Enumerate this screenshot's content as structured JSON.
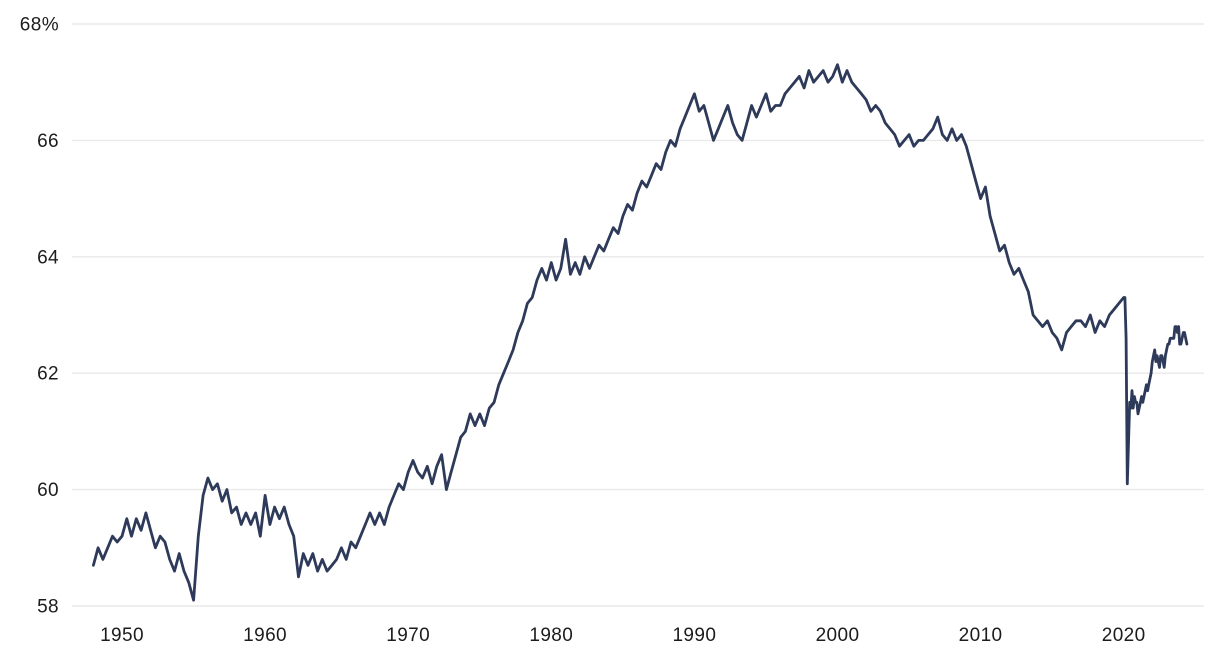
{
  "page": {
    "background_color": "#ffffff"
  },
  "chart_data": {
    "type": "line",
    "title": "",
    "grid": "horizontal-only",
    "grid_color": "#e9e9e9",
    "label_color": "#1c1c1c",
    "line_color": "#2e3a59",
    "legend": "none",
    "y_axis": {
      "range": [
        58,
        68
      ],
      "unit": "%",
      "ticks": [
        {
          "value": 68,
          "label": "68%"
        },
        {
          "value": 66,
          "label": "66"
        },
        {
          "value": 64,
          "label": "64"
        },
        {
          "value": 62,
          "label": "62"
        },
        {
          "value": 60,
          "label": "60"
        },
        {
          "value": 58,
          "label": "58"
        }
      ]
    },
    "x_axis": {
      "range": [
        1948,
        2024.42
      ],
      "ticks": [
        {
          "value": 1950,
          "label": "1950"
        },
        {
          "value": 1960,
          "label": "1960"
        },
        {
          "value": 1970,
          "label": "1970"
        },
        {
          "value": 1980,
          "label": "1980"
        },
        {
          "value": 1990,
          "label": "1990"
        },
        {
          "value": 2000,
          "label": "2000"
        },
        {
          "value": 2010,
          "label": "2010"
        },
        {
          "value": 2020,
          "label": "2020"
        }
      ]
    },
    "series": [
      {
        "id": "main-series",
        "color": "#2e3a59",
        "segments": [
          {
            "start_year": 1948,
            "points_per_year": 3,
            "values": [
              58.7,
              59.0,
              58.8,
              59.0,
              59.2,
              59.1,
              59.2,
              59.5,
              59.2,
              59.5,
              59.3,
              59.6,
              59.3,
              59.0,
              59.2,
              59.1,
              58.8,
              58.6,
              58.9,
              58.6,
              58.4,
              58.1,
              59.2,
              59.9,
              60.2,
              60.0,
              60.1,
              59.8,
              60.0,
              59.6,
              59.7,
              59.4,
              59.6,
              59.4,
              59.6,
              59.2,
              59.9,
              59.4,
              59.7,
              59.5,
              59.7,
              59.4,
              59.2,
              58.5,
              58.9,
              58.7,
              58.9,
              58.6,
              58.8,
              58.6,
              58.7,
              58.8,
              59.0,
              58.8,
              59.1,
              59.0,
              59.2,
              59.4,
              59.6,
              59.4,
              59.6,
              59.4,
              59.7,
              59.9,
              60.1,
              60.0,
              60.3,
              60.5,
              60.3,
              60.2,
              60.4,
              60.1,
              60.4,
              60.6,
              60.0,
              60.3,
              60.6,
              60.9,
              61.0,
              61.3,
              61.1,
              61.3,
              61.1,
              61.4,
              61.5,
              61.8,
              62.0,
              62.2,
              62.4,
              62.7,
              62.9,
              63.2,
              63.3,
              63.6,
              63.8,
              63.6,
              63.9,
              63.6,
              63.8,
              64.3,
              63.7,
              63.9,
              63.7,
              64.0,
              63.8,
              64.0,
              64.2,
              64.1,
              64.3,
              64.5,
              64.4,
              64.7,
              64.9,
              64.8,
              65.1,
              65.3,
              65.2,
              65.4,
              65.6,
              65.5,
              65.8,
              66.0,
              65.9,
              66.2,
              66.4,
              66.6,
              66.8,
              66.5,
              66.6,
              66.3,
              66.0,
              66.2,
              66.4,
              66.6,
              66.3,
              66.1,
              66.0,
              66.3,
              66.6,
              66.4,
              66.6,
              66.8,
              66.5,
              66.6,
              66.6,
              66.8,
              66.9,
              67.0,
              67.1,
              66.9,
              67.2,
              67.0,
              67.1,
              67.2,
              67.0,
              67.1,
              67.3,
              67.0,
              67.2,
              67.0,
              66.9,
              66.8,
              66.7,
              66.5,
              66.6,
              66.5,
              66.3,
              66.2,
              66.1,
              65.9,
              66.0,
              66.1,
              65.9,
              66.0,
              66.0,
              66.1,
              66.2,
              66.4,
              66.1,
              66.0,
              66.2,
              66.0,
              66.1,
              65.9,
              65.6,
              65.3,
              65.0,
              65.2,
              64.7,
              64.4,
              64.1,
              64.2,
              63.9,
              63.7,
              63.8,
              63.6,
              63.4,
              63.0,
              62.9,
              62.8,
              62.9,
              62.7,
              62.6,
              62.4,
              62.7,
              62.8,
              62.9,
              62.9,
              62.8,
              63.0,
              62.7,
              62.9,
              62.8,
              63.0,
              63.1,
              63.2
            ]
          },
          {
            "start_year": 2020,
            "points_per_year": 12,
            "values": [
              63.3,
              63.3,
              62.6,
              60.1,
              60.8,
              61.5,
              61.4,
              61.7,
              61.4,
              61.6,
              61.5,
              61.5,
              61.3,
              61.4,
              61.5,
              61.6,
              61.5,
              61.6,
              61.7,
              61.8,
              61.7,
              61.8,
              61.9,
              62.0,
              62.2,
              62.3,
              62.4,
              62.2,
              62.3,
              62.2,
              62.1,
              62.3,
              62.3,
              62.2,
              62.1,
              62.3,
              62.4,
              62.5,
              62.5,
              62.6,
              62.6,
              62.6,
              62.6,
              62.8,
              62.8,
              62.7,
              62.8,
              62.5,
              62.5,
              62.6,
              62.7,
              62.7,
              62.6,
              62.5
            ]
          }
        ]
      }
    ]
  }
}
